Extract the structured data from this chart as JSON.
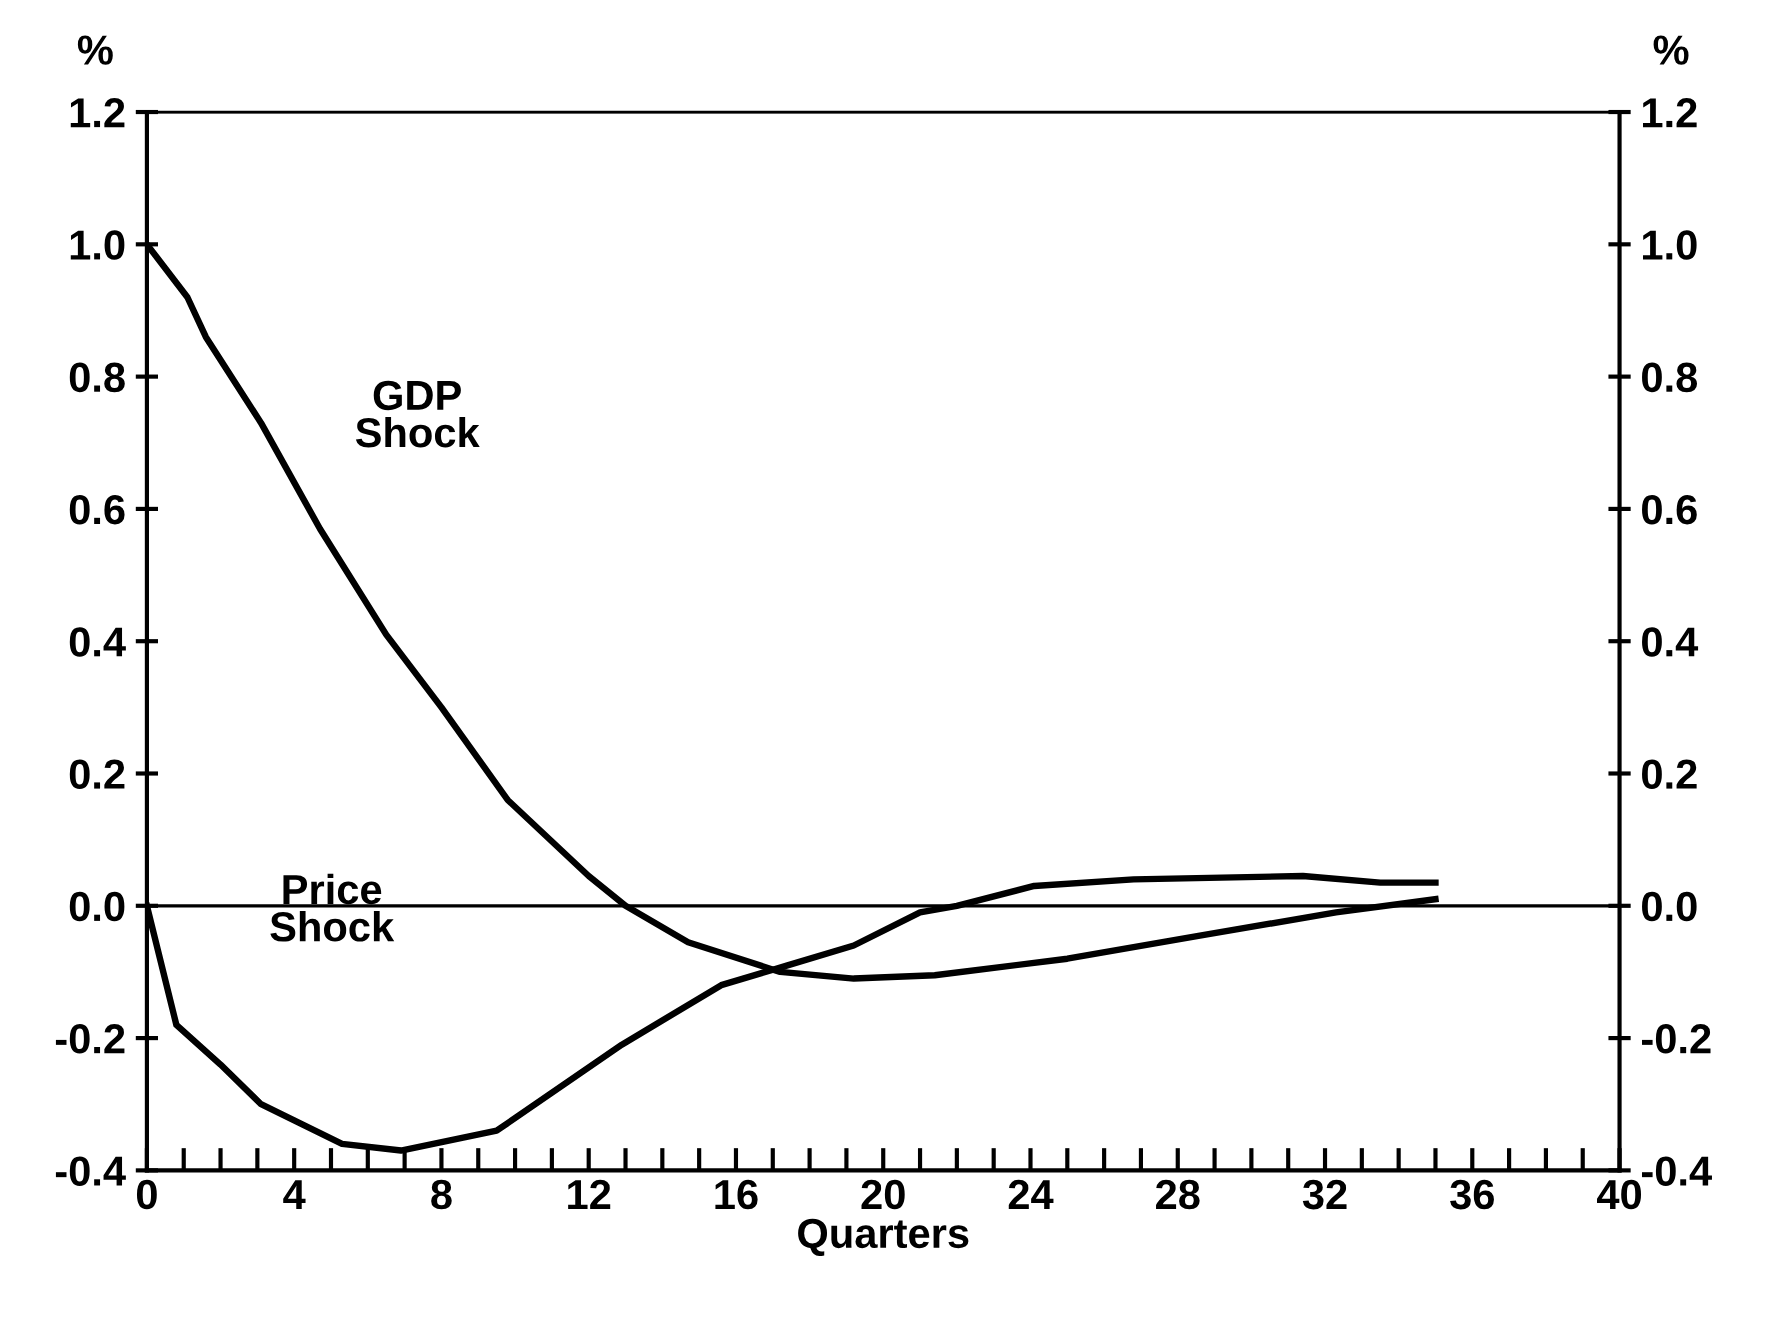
{
  "chart_data": {
    "type": "line",
    "xlabel": "Quarters",
    "ylabel": "%",
    "y2label": "%",
    "xlim": [
      0,
      40
    ],
    "ylim": [
      -0.4,
      1.2
    ],
    "y2lim": [
      -0.4,
      1.2
    ],
    "xticks": [
      0,
      {
        "value": 1,
        "label": null
      },
      {
        "value": 2,
        "label": null
      },
      {
        "value": 3,
        "label": null
      },
      4,
      {
        "value": 5,
        "label": null
      },
      {
        "value": 6,
        "label": null
      },
      {
        "value": 7,
        "label": null
      },
      8,
      {
        "value": 9,
        "label": null
      },
      {
        "value": 10,
        "label": null
      },
      {
        "value": 11,
        "label": null
      },
      12,
      {
        "value": 13,
        "label": null
      },
      {
        "value": 14,
        "label": null
      },
      {
        "value": 15,
        "label": null
      },
      16,
      {
        "value": 17,
        "label": null
      },
      {
        "value": 18,
        "label": null
      },
      {
        "value": 19,
        "label": null
      },
      20,
      {
        "value": 21,
        "label": null
      },
      {
        "value": 22,
        "label": null
      },
      {
        "value": 23,
        "label": null
      },
      24,
      {
        "value": 25,
        "label": null
      },
      {
        "value": 26,
        "label": null
      },
      {
        "value": 27,
        "label": null
      },
      28,
      {
        "value": 29,
        "label": null
      },
      {
        "value": 30,
        "label": null
      },
      {
        "value": 31,
        "label": null
      },
      32,
      {
        "value": 33,
        "label": null
      },
      {
        "value": 34,
        "label": null
      },
      {
        "value": 35,
        "label": null
      },
      36,
      {
        "value": 37,
        "label": null
      },
      {
        "value": 38,
        "label": null
      },
      {
        "value": 39,
        "label": null
      },
      40
    ],
    "yticks": [
      {
        "value": -0.4,
        "label": "-0.4"
      },
      {
        "value": -0.2,
        "label": "-0.2"
      },
      {
        "value": 0,
        "label": "0.0"
      },
      {
        "value": 0.2,
        "label": "0.2"
      },
      {
        "value": 0.4,
        "label": "0.4"
      },
      {
        "value": 0.6,
        "label": "0.6"
      },
      {
        "value": 0.8,
        "label": "0.8"
      },
      {
        "value": 1.0,
        "label": "1.0"
      },
      {
        "value": 1.2,
        "label": "1.2"
      }
    ],
    "y2ticks": [
      {
        "value": -0.4,
        "label": "-0.4"
      },
      {
        "value": -0.2,
        "label": "-0.2"
      },
      {
        "value": 0,
        "label": "0.0"
      },
      {
        "value": 0.2,
        "label": "0.2"
      },
      {
        "value": 0.4,
        "label": "0.4"
      },
      {
        "value": 0.6,
        "label": "0.6"
      },
      {
        "value": 0.8,
        "label": "0.8"
      },
      {
        "value": 1.0,
        "label": "1.0"
      },
      {
        "value": 1.2,
        "label": "1.2"
      }
    ],
    "grid": false,
    "legend": false,
    "marker": "none",
    "line_style": "solid",
    "ref_lines": [
      {
        "axis": "y",
        "value": 0,
        "color": "#000000"
      }
    ],
    "series": [
      {
        "name": "GDP\nShock",
        "color": "#000000",
        "x": [
          0,
          1.1,
          1.6,
          3.1,
          4.7,
          6.5,
          8.0,
          9.8,
          12,
          13,
          14.7,
          17.2,
          19.2,
          21.4,
          25,
          28.6,
          32.3,
          35
        ],
        "values": [
          1.0,
          0.92,
          0.86,
          0.73,
          0.57,
          0.41,
          0.3,
          0.16,
          0.045,
          0,
          -0.055,
          -0.1,
          -0.11,
          -0.105,
          -0.08,
          -0.045,
          -0.01,
          0.01
        ]
      },
      {
        "name": "Price\nShock",
        "color": "#000000",
        "x": [
          0,
          0.8,
          2,
          3.1,
          5.3,
          6.9,
          9.5,
          12.9,
          15.6,
          17.4,
          19.2,
          21,
          22,
          24.1,
          26.8,
          31.4,
          33.5,
          35
        ],
        "values": [
          0,
          -0.18,
          -0.24,
          -0.3,
          -0.36,
          -0.37,
          -0.34,
          -0.21,
          -0.12,
          -0.09,
          -0.06,
          -0.01,
          0,
          0.03,
          0.04,
          0.045,
          0.035,
          0.035
        ]
      }
    ]
  }
}
